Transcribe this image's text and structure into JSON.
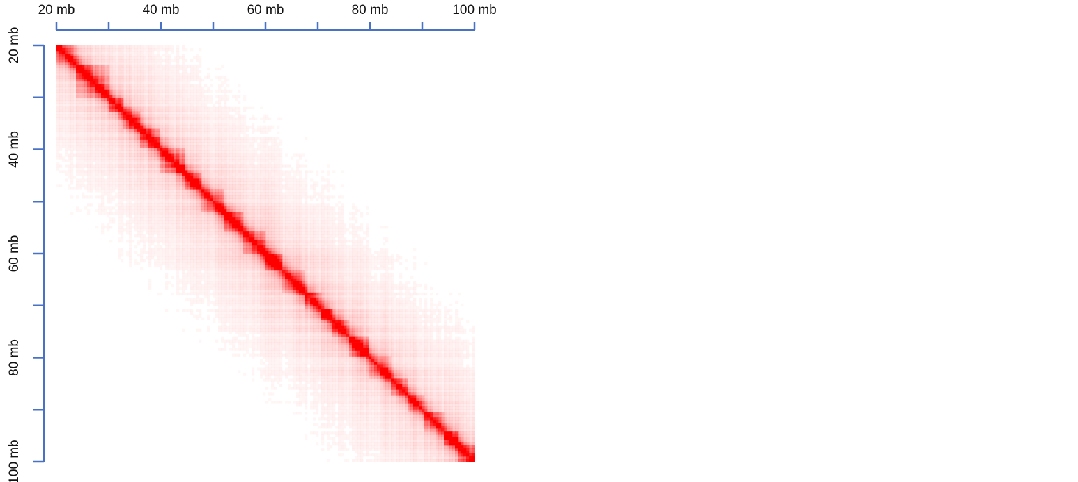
{
  "chart_data": {
    "type": "heatmap",
    "title": "",
    "xlabel": "",
    "ylabel": "",
    "x_range_mb": [
      20,
      100
    ],
    "y_range_mb": [
      20,
      100
    ],
    "x_ticks": [
      20,
      30,
      40,
      50,
      60,
      70,
      80,
      90,
      100
    ],
    "y_ticks": [
      20,
      30,
      40,
      50,
      60,
      70,
      80,
      90,
      100
    ],
    "x_tick_labels": [
      {
        "value": 20,
        "text": "20 mb"
      },
      {
        "value": 40,
        "text": "40 mb"
      },
      {
        "value": 60,
        "text": "60 mb"
      },
      {
        "value": 80,
        "text": "80 mb"
      },
      {
        "value": 100,
        "text": "100 mb"
      }
    ],
    "y_tick_labels": [
      {
        "value": 20,
        "text": "20 mb"
      },
      {
        "value": 40,
        "text": "40 mb"
      },
      {
        "value": 60,
        "text": "60 mb"
      },
      {
        "value": 80,
        "text": "80 mb"
      },
      {
        "value": 100,
        "text": "100 mb"
      }
    ],
    "domains_mb": [
      [
        20,
        24
      ],
      [
        24,
        30
      ],
      [
        30,
        33
      ],
      [
        33,
        36
      ],
      [
        36,
        40
      ],
      [
        40,
        44.5
      ],
      [
        44.5,
        48
      ],
      [
        48,
        52
      ],
      [
        52,
        56
      ],
      [
        56,
        60
      ],
      [
        60,
        63
      ],
      [
        63,
        67.5
      ],
      [
        67.5,
        70.5
      ],
      [
        70.5,
        73
      ],
      [
        73,
        76
      ],
      [
        76,
        79.5
      ],
      [
        79.5,
        84
      ],
      [
        84,
        87
      ],
      [
        87,
        90.5
      ],
      [
        90.5,
        94
      ],
      [
        94,
        97
      ],
      [
        97,
        100
      ]
    ],
    "diagonal_color": "#ff0000",
    "background_color": "#ffffff",
    "axis_color": "#4a72c4"
  }
}
